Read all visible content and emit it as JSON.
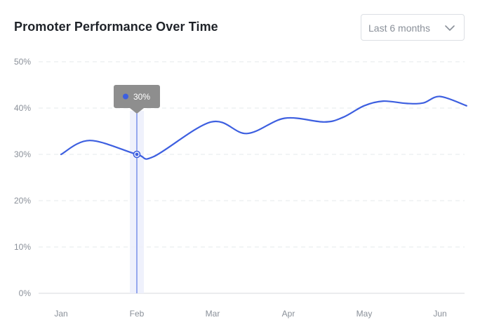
{
  "header": {
    "title": "Promoter Performance Over Time",
    "range_select": {
      "value": "Last 6 months"
    }
  },
  "colors": {
    "line": "#3d5fe0",
    "grid": "#e6e8eb",
    "tooltip_bg": "#8e8e8e",
    "highlight_band": "#eceefb"
  },
  "icons": {
    "dropdown": "chevron-down-icon"
  },
  "chart_data": {
    "type": "line",
    "title": "Promoter Performance Over Time",
    "categories": [
      "Jan",
      "Feb",
      "Mar",
      "Apr",
      "May",
      "Jun"
    ],
    "y_ticks": [
      "0%",
      "10%",
      "20%",
      "30%",
      "40%",
      "50%"
    ],
    "ylim": [
      0,
      50
    ],
    "y_unit": "%",
    "x_tick_values": [
      0,
      1,
      2,
      3,
      4,
      5
    ],
    "xlim": [
      -0.11,
      5.35
    ],
    "points": [
      [
        0.0,
        30
      ],
      [
        0.38,
        33
      ],
      [
        1.0,
        30
      ],
      [
        1.22,
        29.5
      ],
      [
        1.98,
        37
      ],
      [
        2.45,
        34.5
      ],
      [
        2.95,
        37.8
      ],
      [
        3.47,
        37
      ],
      [
        3.72,
        38
      ],
      [
        4.0,
        40.5
      ],
      [
        4.25,
        41.5
      ],
      [
        4.56,
        41
      ],
      [
        4.78,
        41.1
      ],
      [
        5.0,
        42.5
      ],
      [
        5.35,
        40.5
      ]
    ],
    "highlight": {
      "category": "Feb",
      "x": 1.0,
      "value": 30,
      "label": "30%"
    },
    "grid": true,
    "legend": "none"
  }
}
